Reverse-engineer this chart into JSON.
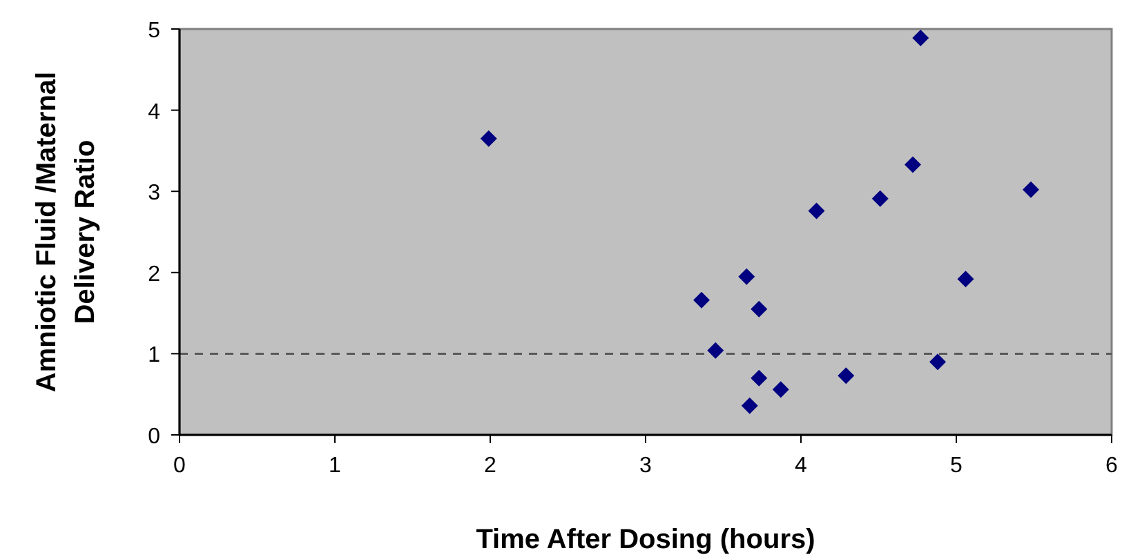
{
  "chart_data": {
    "type": "scatter",
    "xlabel": "Time After Dosing (hours)",
    "ylabel": "Amniotic Fluid /Maternal Delivery Ratio",
    "xlim": [
      0,
      6
    ],
    "xticks": [
      0,
      1,
      2,
      3,
      4,
      5,
      6
    ],
    "ylim": [
      0,
      5
    ],
    "yticks": [
      0,
      1,
      2,
      3,
      4,
      5
    ],
    "grid": false,
    "marker": "diamond",
    "series": [
      {
        "color": "#000080",
        "x": [
          1.99,
          3.36,
          3.45,
          3.65,
          3.67,
          3.73,
          3.73,
          3.87,
          4.1,
          4.29,
          4.51,
          4.72,
          4.77,
          4.88,
          5.06,
          5.48
        ],
        "values": [
          3.65,
          1.66,
          1.04,
          1.95,
          0.36,
          1.55,
          0.7,
          0.56,
          2.76,
          0.73,
          2.91,
          3.33,
          4.89,
          0.9,
          1.92,
          3.02
        ]
      }
    ],
    "ref_lines": [
      {
        "axis": "y",
        "value": 1,
        "color": "#595959",
        "line_style": "dashed"
      }
    ]
  }
}
